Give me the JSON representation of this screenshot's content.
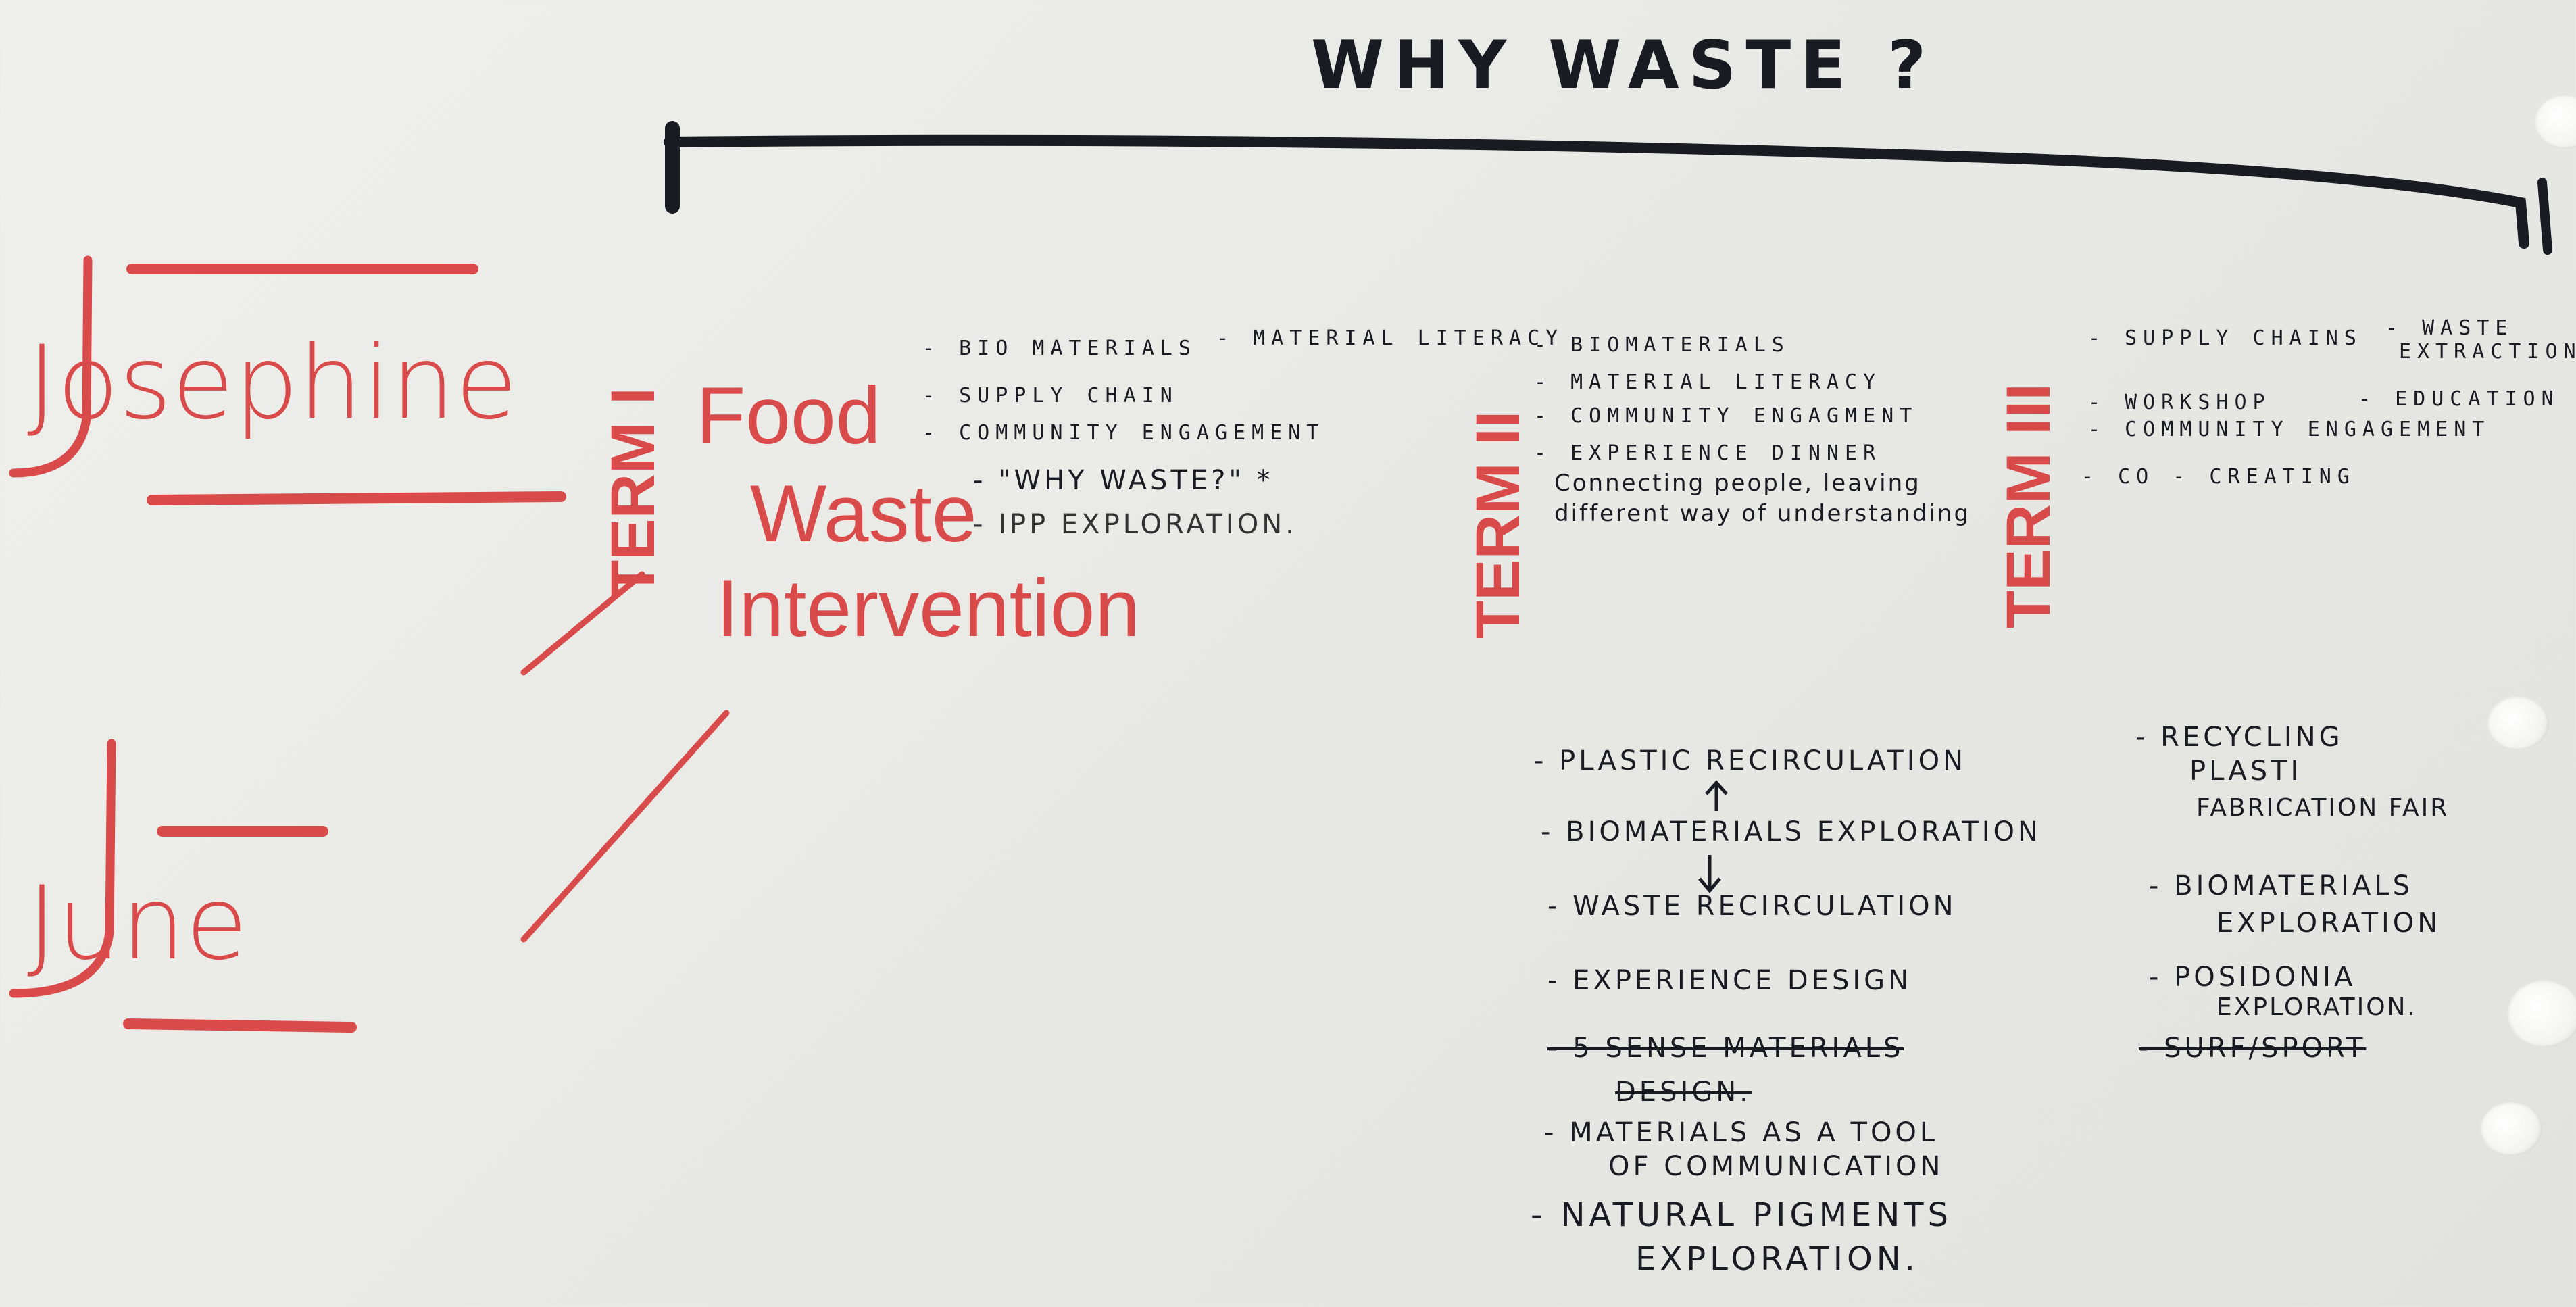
{
  "title": "WHY WASTE ?",
  "people": {
    "josephine": "Josephine",
    "june": "June"
  },
  "term_labels": {
    "term_1": "TERM I",
    "term_2": "TERM II",
    "term_3": "TERM III"
  },
  "term1": {
    "project_title": [
      "Food",
      "Waste",
      "Intervention"
    ],
    "notes": [
      "- BIO MATERIALS",
      "- MATERIAL LITERACY",
      "- SUPPLY CHAIN",
      "- COMMUNITY ENGAGEMENT",
      "- \"WHY WASTE?\" *",
      "- IPP EXPLORATION."
    ]
  },
  "term2": {
    "notes": [
      "- BIOMATERIALS",
      "- MATERIAL LITERACY",
      "- COMMUNITY ENGAGMENT",
      "- EXPERIENCE DINNER",
      "Connecting people, leaving",
      "different way of understanding"
    ],
    "june_notes": [
      "- PLASTIC RECIRCULATION",
      "- BIOMATERIALS EXPLORATION",
      "- WASTE RECIRCULATION",
      "- EXPERIENCE DESIGN",
      "- 5 SENSE MATERIALS",
      "DESIGN.",
      "- MATERIALS AS A TOOL",
      "OF COMMUNICATION",
      "- NATURAL PIGMENTS",
      "EXPLORATION."
    ]
  },
  "term3": {
    "notes": [
      "- SUPPLY CHAINS",
      "- WASTE",
      "EXTRACTION",
      "- WORKSHOP",
      "- EDUCATION",
      "- COMMUNITY ENGAGEMENT",
      "- CO - CREATING"
    ],
    "june_notes": [
      "- RECYCLING",
      "PLASTI",
      "FABRICATION FAIR",
      "- BIOMATERIALS",
      "EXPLORATION",
      "- POSIDONIA",
      "EXPLORATION.",
      "- SURF/SPORT"
    ]
  },
  "colors": {
    "red_marker": "#d94a4a",
    "black_marker": "#1a1a22",
    "paper": "#ececea"
  }
}
